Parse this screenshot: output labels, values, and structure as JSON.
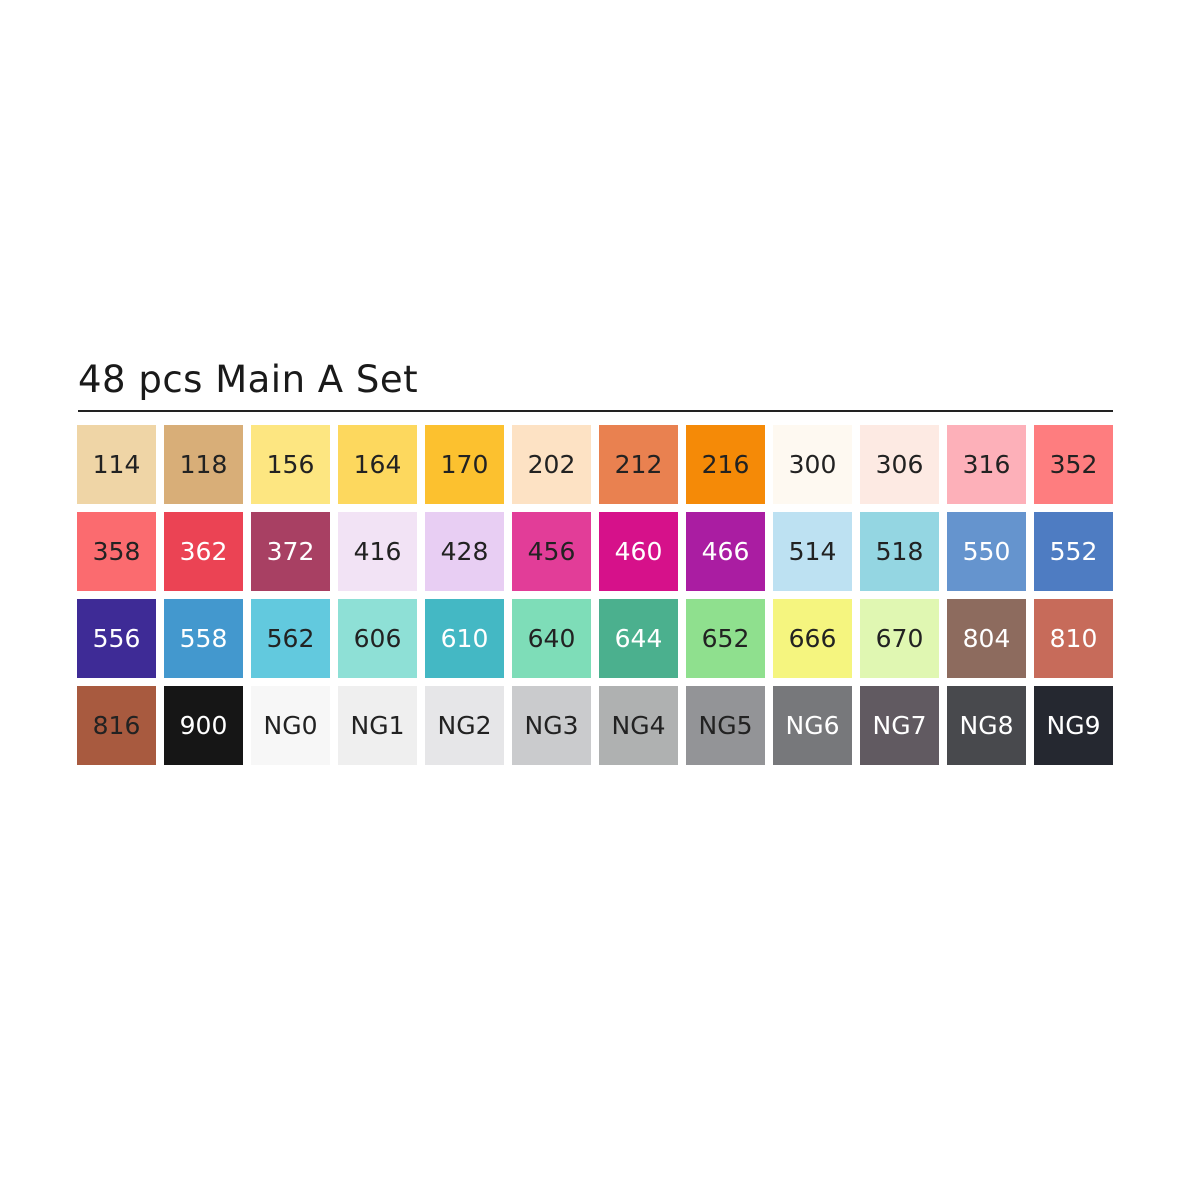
{
  "title": "48 pcs Main A Set",
  "swatches": [
    {
      "code": "114",
      "color": "#EFD5A6",
      "text": "#222222"
    },
    {
      "code": "118",
      "color": "#D8AE78",
      "text": "#222222"
    },
    {
      "code": "156",
      "color": "#FDE681",
      "text": "#222222"
    },
    {
      "code": "164",
      "color": "#FDD85E",
      "text": "#222222"
    },
    {
      "code": "170",
      "color": "#FCC12F",
      "text": "#222222"
    },
    {
      "code": "202",
      "color": "#FDE2C4",
      "text": "#222222"
    },
    {
      "code": "212",
      "color": "#E98150",
      "text": "#222222"
    },
    {
      "code": "216",
      "color": "#F58A07",
      "text": "#222222"
    },
    {
      "code": "300",
      "color": "#FEF9F1",
      "text": "#222222"
    },
    {
      "code": "306",
      "color": "#FDEAE3",
      "text": "#222222"
    },
    {
      "code": "316",
      "color": "#FDB0B9",
      "text": "#222222"
    },
    {
      "code": "352",
      "color": "#FE7D7F",
      "text": "#222222"
    },
    {
      "code": "358",
      "color": "#FB6B6F",
      "text": "#222222"
    },
    {
      "code": "362",
      "color": "#EB4354",
      "text": "#FFFFFF"
    },
    {
      "code": "372",
      "color": "#A84063",
      "text": "#FFFFFF"
    },
    {
      "code": "416",
      "color": "#F2E3F5",
      "text": "#222222"
    },
    {
      "code": "428",
      "color": "#E8CEF3",
      "text": "#222222"
    },
    {
      "code": "456",
      "color": "#E23D98",
      "text": "#222222"
    },
    {
      "code": "460",
      "color": "#D6118A",
      "text": "#FFFFFF"
    },
    {
      "code": "466",
      "color": "#AA1DA2",
      "text": "#FFFFFF"
    },
    {
      "code": "514",
      "color": "#BDE1F2",
      "text": "#222222"
    },
    {
      "code": "518",
      "color": "#94D6E2",
      "text": "#222222"
    },
    {
      "code": "550",
      "color": "#6594CE",
      "text": "#FFFFFF"
    },
    {
      "code": "552",
      "color": "#4E7CC2",
      "text": "#FFFFFF"
    },
    {
      "code": "556",
      "color": "#3E2B96",
      "text": "#FFFFFF"
    },
    {
      "code": "558",
      "color": "#4398CE",
      "text": "#FFFFFF"
    },
    {
      "code": "562",
      "color": "#62C9DE",
      "text": "#222222"
    },
    {
      "code": "606",
      "color": "#8EE0D6",
      "text": "#222222"
    },
    {
      "code": "610",
      "color": "#44B8C4",
      "text": "#FFFFFF"
    },
    {
      "code": "640",
      "color": "#7EDDB8",
      "text": "#222222"
    },
    {
      "code": "644",
      "color": "#4BB08E",
      "text": "#FFFFFF"
    },
    {
      "code": "652",
      "color": "#8FE08E",
      "text": "#222222"
    },
    {
      "code": "666",
      "color": "#F5F57F",
      "text": "#222222"
    },
    {
      "code": "670",
      "color": "#E0F7B2",
      "text": "#222222"
    },
    {
      "code": "804",
      "color": "#8D6B5E",
      "text": "#FFFFFF"
    },
    {
      "code": "810",
      "color": "#C76B5A",
      "text": "#FFFFFF"
    },
    {
      "code": "816",
      "color": "#A85A3F",
      "text": "#222222"
    },
    {
      "code": "900",
      "color": "#161616",
      "text": "#FFFFFF"
    },
    {
      "code": "NG0",
      "color": "#F7F7F7",
      "text": "#222222"
    },
    {
      "code": "NG1",
      "color": "#EFEFEF",
      "text": "#222222"
    },
    {
      "code": "NG2",
      "color": "#E6E6E8",
      "text": "#222222"
    },
    {
      "code": "NG3",
      "color": "#CACBCD",
      "text": "#222222"
    },
    {
      "code": "NG4",
      "color": "#AFB1B1",
      "text": "#222222"
    },
    {
      "code": "NG5",
      "color": "#939497",
      "text": "#222222"
    },
    {
      "code": "NG6",
      "color": "#77787B",
      "text": "#FFFFFF"
    },
    {
      "code": "NG7",
      "color": "#615A61",
      "text": "#FFFFFF"
    },
    {
      "code": "NG8",
      "color": "#48494D",
      "text": "#FFFFFF"
    },
    {
      "code": "NG9",
      "color": "#252830",
      "text": "#FFFFFF"
    }
  ]
}
